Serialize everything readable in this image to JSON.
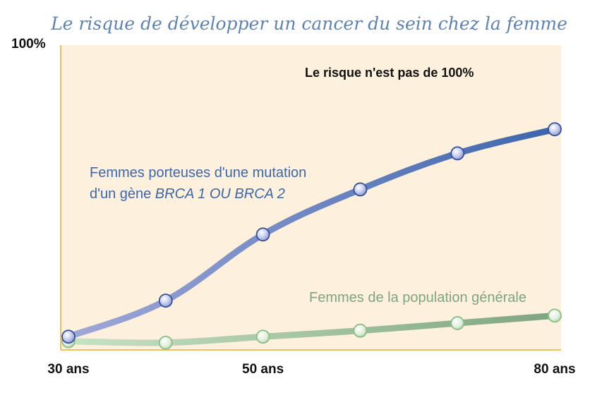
{
  "chart_data": {
    "type": "line",
    "title": "Le risque de développer un cancer du sein chez la femme",
    "y_top_label": "100%",
    "annotation": "Le risque n'est pas de 100%",
    "ylim": [
      0,
      100
    ],
    "xlim": [
      30,
      80
    ],
    "x_tick_labels": [
      {
        "x": 30,
        "label": "30 ans"
      },
      {
        "x": 50,
        "label": "50 ans"
      },
      {
        "x": 80,
        "label": "80 ans"
      }
    ],
    "x": [
      30,
      40,
      50,
      60,
      70,
      80
    ],
    "grid": false,
    "series": [
      {
        "name_line1": "Femmes porteuses d'une mutation",
        "name_line2_prefix": "d'un gène ",
        "name_line2_italic": "BRCA 1 OU BRCA 2",
        "color": "#3d66ad",
        "color_light": "#9fa8d8",
        "values": [
          3,
          15,
          37,
          52,
          64,
          72
        ]
      },
      {
        "name": "Femmes de la population générale",
        "color": "#7fa57f",
        "color_light": "#c8e2c4",
        "values": [
          1.5,
          1,
          3,
          5,
          7.5,
          10
        ]
      }
    ]
  },
  "colors": {
    "title": "#5b83b8",
    "plot_background": "#fdf0dc",
    "axis": "#f0c060"
  }
}
